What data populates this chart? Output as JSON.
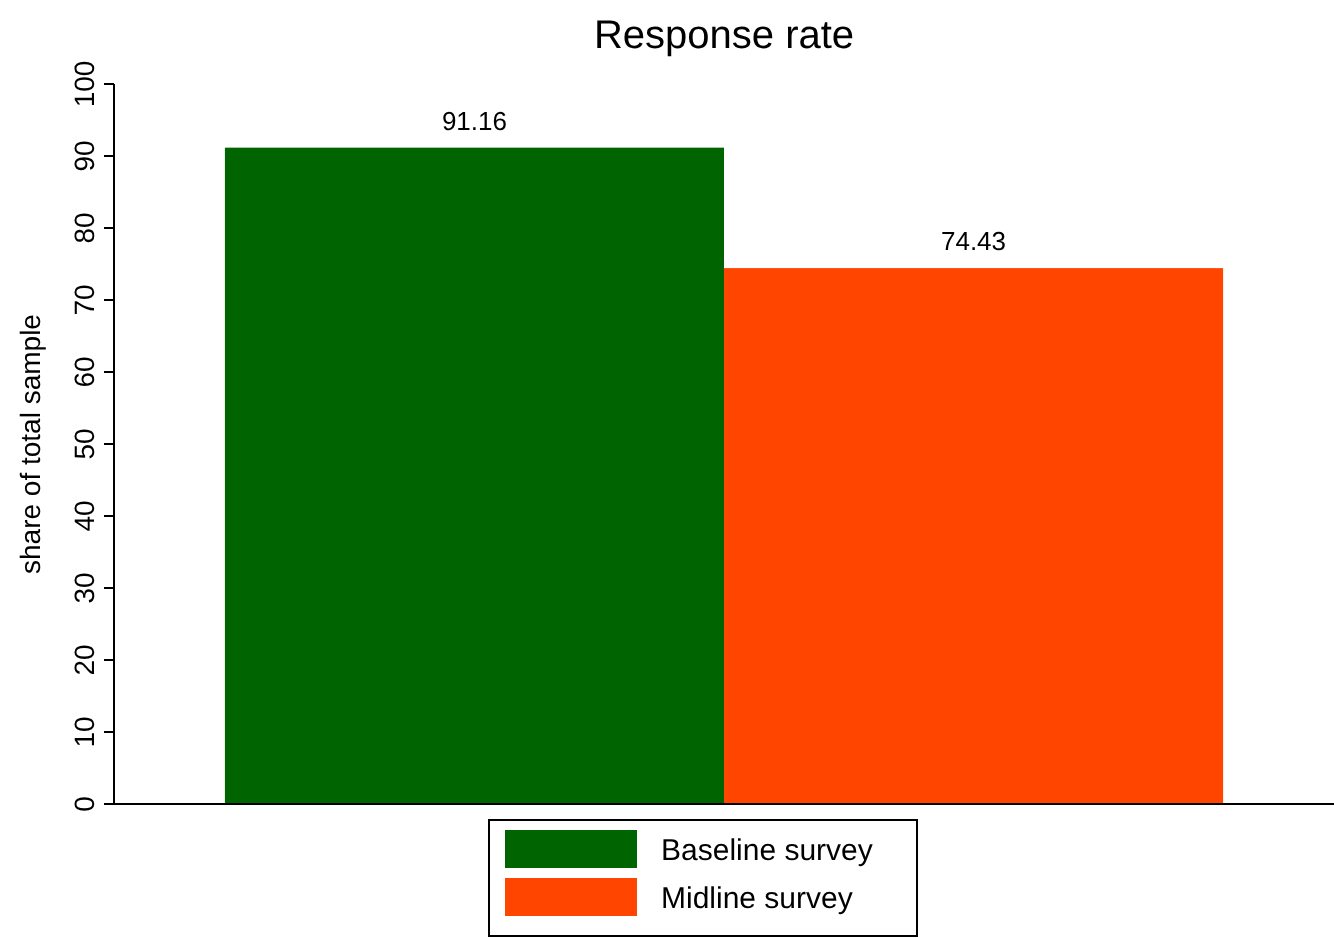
{
  "chart_data": {
    "type": "bar",
    "title": "Response rate",
    "ylabel": "share of total sample",
    "categories": [
      null
    ],
    "series": [
      {
        "name": "Baseline survey",
        "color": "#006400",
        "values": [
          91.16
        ]
      },
      {
        "name": "Midline survey",
        "color": "#ff4500",
        "values": [
          74.43
        ]
      }
    ],
    "ylim": [
      0,
      100
    ],
    "yticks": [
      0,
      10,
      20,
      30,
      40,
      50,
      60,
      70,
      80,
      90,
      100
    ],
    "data_labels": true,
    "legend": "bottom",
    "grid": false
  }
}
